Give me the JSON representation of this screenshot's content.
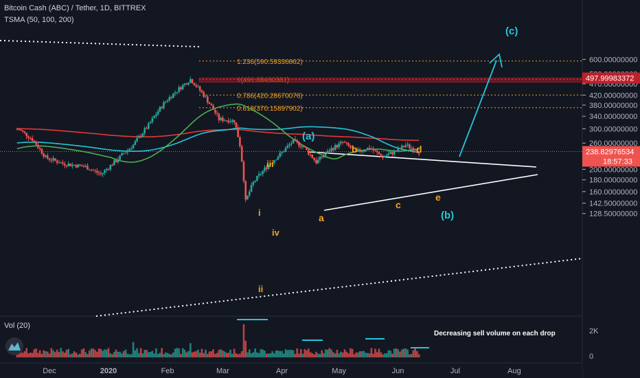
{
  "header": {
    "title": "Bitcoin Cash (ABC) / Tether, 1D, BITTREX",
    "indicator": "TSMA (50, 100, 200)",
    "volume_label": "Vol (20)"
  },
  "price_badges": {
    "current": "497.99983372",
    "last": "238.82976534",
    "countdown": "18:57:33"
  },
  "annotation": "Decreasing sell volume on each drop",
  "colors": {
    "background": "#131722",
    "up_candle": "#26a69a",
    "down_candle": "#ef5350",
    "ma_50": "#4caf50",
    "ma_100": "#26c6da",
    "ma_200": "#e53935",
    "fib": "#f7a21b",
    "wave_label": "#f7a21b",
    "wave_label_cyan": "#26c6da",
    "resistance_box": "#9c1a26"
  },
  "chart_data": {
    "type": "candlestick",
    "y_scale": "log",
    "y_ticks": [
      "600.00000000",
      "520.00000000",
      "470.00000000",
      "420.00000000",
      "380.00000000",
      "340.00000000",
      "300.00000000",
      "260.00000000",
      "230.00000000",
      "200.00000000",
      "180.00000000",
      "160.00000000",
      "142.50000000",
      "128.50000000"
    ],
    "x_ticks": [
      "Dec",
      "2020",
      "Feb",
      "Mar",
      "Apr",
      "May",
      "Jun",
      "Jul",
      "Aug"
    ],
    "volume_ticks": [
      "2K",
      "0"
    ],
    "fib_levels": [
      {
        "label": "1.236(590.59336862)",
        "value": 590.59
      },
      {
        "label": "1(491.08430381)",
        "value": 491.08
      },
      {
        "label": "0.786(420.28670076)",
        "value": 420.29
      },
      {
        "label": "0.618(370.15897902)",
        "value": 370.16
      }
    ],
    "wave_labels": [
      {
        "text": "iii"
      },
      {
        "text": "i"
      },
      {
        "text": "iv"
      },
      {
        "text": "ii"
      },
      {
        "text": "(a)"
      },
      {
        "text": "a"
      },
      {
        "text": "b"
      },
      {
        "text": "c"
      },
      {
        "text": "d"
      },
      {
        "text": "e"
      },
      {
        "text": "(b)"
      },
      {
        "text": "(c)"
      }
    ],
    "price_path": [
      [
        "2019-11-15",
        298
      ],
      [
        "2019-11-22",
        270
      ],
      [
        "2019-11-29",
        225
      ],
      [
        "2019-12-08",
        212
      ],
      [
        "2019-12-20",
        205
      ],
      [
        "2019-12-28",
        190
      ],
      [
        "2020-01-05",
        218
      ],
      [
        "2020-01-14",
        255
      ],
      [
        "2020-01-22",
        310
      ],
      [
        "2020-01-31",
        395
      ],
      [
        "2020-02-08",
        455
      ],
      [
        "2020-02-13",
        492
      ],
      [
        "2020-02-20",
        420
      ],
      [
        "2020-02-28",
        330
      ],
      [
        "2020-03-07",
        325
      ],
      [
        "2020-03-10",
        255
      ],
      [
        "2020-03-13",
        145
      ],
      [
        "2020-03-17",
        175
      ],
      [
        "2020-03-24",
        205
      ],
      [
        "2020-03-31",
        232
      ],
      [
        "2020-04-07",
        265
      ],
      [
        "2020-04-12",
        252
      ],
      [
        "2020-04-19",
        215
      ],
      [
        "2020-04-27",
        245
      ],
      [
        "2020-05-03",
        262
      ],
      [
        "2020-05-10",
        238
      ],
      [
        "2020-05-17",
        248
      ],
      [
        "2020-05-24",
        226
      ],
      [
        "2020-05-31",
        240
      ],
      [
        "2020-06-05",
        255
      ],
      [
        "2020-06-12",
        238
      ]
    ]
  }
}
